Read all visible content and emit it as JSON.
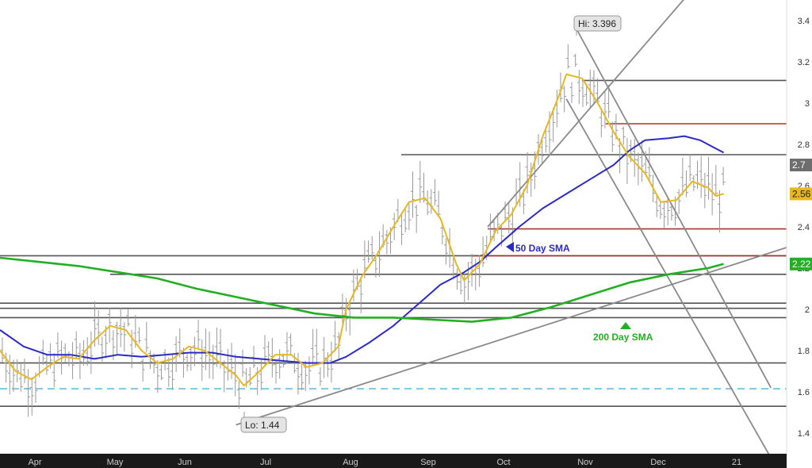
{
  "chart_data": {
    "type": "line",
    "x_labels": [
      "Apr",
      "May",
      "Jun",
      "Jul",
      "Aug",
      "Sep",
      "Oct",
      "Nov",
      "Dec",
      "21"
    ],
    "ylim": [
      1.3,
      3.5
    ],
    "y_ticks": [
      "1.4",
      "1.6",
      "1.8",
      "2",
      "2.2",
      "2.4",
      "2.6",
      "2.8",
      "3",
      "3.2",
      "3.4"
    ],
    "grid": false,
    "annotations": {
      "high": "Hi: 3.396",
      "low": "Lo: 1.44",
      "sma50": "50 Day SMA",
      "sma200": "200 Day SMA"
    },
    "last_price": {
      "text": "2.7",
      "value": 2.7
    },
    "last_sma20": {
      "text": "2.56",
      "value": 2.56
    },
    "last_sma200": {
      "text": "2.22",
      "value": 2.22
    },
    "horizontal_levels": [
      {
        "value": 3.11,
        "color": "#555555",
        "start": 0.74
      },
      {
        "value": 2.9,
        "color": "#b03030",
        "start": 0.77
      },
      {
        "value": 2.75,
        "color": "#555555",
        "start": 0.51
      },
      {
        "value": 2.39,
        "color": "#b03030",
        "start": 0.62
      },
      {
        "value": 2.26,
        "color": "#555555",
        "start": 0.0
      },
      {
        "value": 2.26,
        "color": "#b03030",
        "start": 0.6
      },
      {
        "value": 2.17,
        "color": "#555555",
        "start": 0.14
      },
      {
        "value": 2.03,
        "color": "#555555",
        "start": 0.0
      },
      {
        "value": 2.005,
        "color": "#555555",
        "start": 0.0
      },
      {
        "value": 1.96,
        "color": "#555555",
        "start": 0.0
      },
      {
        "value": 1.74,
        "color": "#555555",
        "start": 0.0
      },
      {
        "value": 1.53,
        "color": "#555555",
        "start": 0.0
      }
    ],
    "dashed_level": {
      "value": 1.615,
      "color": "#7ec8e3"
    },
    "trendlines": [
      {
        "x1": 0.3,
        "y1": 1.44,
        "x2": 1.0,
        "y2": 2.3
      },
      {
        "x1": 0.62,
        "y1": 2.4,
        "x2": 0.88,
        "y2": 3.55
      },
      {
        "x1": 0.73,
        "y1": 3.38,
        "x2": 0.98,
        "y2": 1.62
      },
      {
        "x1": 0.72,
        "y1": 3.02,
        "x2": 0.98,
        "y2": 1.28
      }
    ],
    "series": [
      {
        "color": "#2a2ac8",
        "values": [
          [
            0.0,
            1.9
          ],
          [
            0.03,
            1.82
          ],
          [
            0.06,
            1.78
          ],
          [
            0.09,
            1.78
          ],
          [
            0.12,
            1.76
          ],
          [
            0.15,
            1.78
          ],
          [
            0.18,
            1.77
          ],
          [
            0.21,
            1.78
          ],
          [
            0.24,
            1.79
          ],
          [
            0.27,
            1.79
          ],
          [
            0.3,
            1.77
          ],
          [
            0.33,
            1.76
          ],
          [
            0.36,
            1.75
          ],
          [
            0.39,
            1.74
          ],
          [
            0.42,
            1.74
          ],
          [
            0.44,
            1.77
          ],
          [
            0.47,
            1.84
          ],
          [
            0.5,
            1.92
          ],
          [
            0.53,
            2.02
          ],
          [
            0.56,
            2.12
          ],
          [
            0.59,
            2.18
          ],
          [
            0.61,
            2.23
          ],
          [
            0.63,
            2.3
          ],
          [
            0.66,
            2.4
          ],
          [
            0.69,
            2.49
          ],
          [
            0.72,
            2.56
          ],
          [
            0.75,
            2.63
          ],
          [
            0.78,
            2.7
          ],
          [
            0.8,
            2.77
          ],
          [
            0.82,
            2.82
          ],
          [
            0.85,
            2.83
          ],
          [
            0.87,
            2.84
          ],
          [
            0.89,
            2.82
          ],
          [
            0.91,
            2.78
          ],
          [
            0.92,
            2.76
          ]
        ]
      },
      {
        "color": "#e8b820",
        "values": [
          [
            0.0,
            1.8
          ],
          [
            0.02,
            1.7
          ],
          [
            0.04,
            1.66
          ],
          [
            0.06,
            1.72
          ],
          [
            0.08,
            1.77
          ],
          [
            0.1,
            1.76
          ],
          [
            0.12,
            1.85
          ],
          [
            0.14,
            1.92
          ],
          [
            0.16,
            1.9
          ],
          [
            0.18,
            1.8
          ],
          [
            0.2,
            1.74
          ],
          [
            0.22,
            1.76
          ],
          [
            0.24,
            1.82
          ],
          [
            0.26,
            1.8
          ],
          [
            0.28,
            1.74
          ],
          [
            0.3,
            1.68
          ],
          [
            0.31,
            1.63
          ],
          [
            0.33,
            1.7
          ],
          [
            0.35,
            1.78
          ],
          [
            0.37,
            1.78
          ],
          [
            0.39,
            1.72
          ],
          [
            0.41,
            1.74
          ],
          [
            0.43,
            1.82
          ],
          [
            0.44,
            2.0
          ],
          [
            0.46,
            2.16
          ],
          [
            0.48,
            2.27
          ],
          [
            0.5,
            2.4
          ],
          [
            0.52,
            2.52
          ],
          [
            0.54,
            2.54
          ],
          [
            0.56,
            2.44
          ],
          [
            0.58,
            2.22
          ],
          [
            0.59,
            2.14
          ],
          [
            0.61,
            2.22
          ],
          [
            0.63,
            2.38
          ],
          [
            0.65,
            2.46
          ],
          [
            0.67,
            2.6
          ],
          [
            0.69,
            2.84
          ],
          [
            0.71,
            3.03
          ],
          [
            0.72,
            3.14
          ],
          [
            0.74,
            3.12
          ],
          [
            0.76,
            3.0
          ],
          [
            0.78,
            2.86
          ],
          [
            0.8,
            2.74
          ],
          [
            0.82,
            2.66
          ],
          [
            0.84,
            2.52
          ],
          [
            0.86,
            2.53
          ],
          [
            0.88,
            2.62
          ],
          [
            0.9,
            2.59
          ],
          [
            0.91,
            2.55
          ],
          [
            0.92,
            2.56
          ]
        ]
      },
      {
        "color": "#22b022",
        "values": [
          [
            0.0,
            2.25
          ],
          [
            0.05,
            2.23
          ],
          [
            0.1,
            2.21
          ],
          [
            0.15,
            2.18
          ],
          [
            0.2,
            2.15
          ],
          [
            0.25,
            2.1
          ],
          [
            0.3,
            2.06
          ],
          [
            0.35,
            2.02
          ],
          [
            0.4,
            1.98
          ],
          [
            0.45,
            1.96
          ],
          [
            0.5,
            1.96
          ],
          [
            0.55,
            1.95
          ],
          [
            0.6,
            1.94
          ],
          [
            0.65,
            1.96
          ],
          [
            0.7,
            2.01
          ],
          [
            0.75,
            2.07
          ],
          [
            0.8,
            2.13
          ],
          [
            0.85,
            2.17
          ],
          [
            0.9,
            2.2
          ],
          [
            0.92,
            2.22
          ]
        ]
      }
    ]
  }
}
